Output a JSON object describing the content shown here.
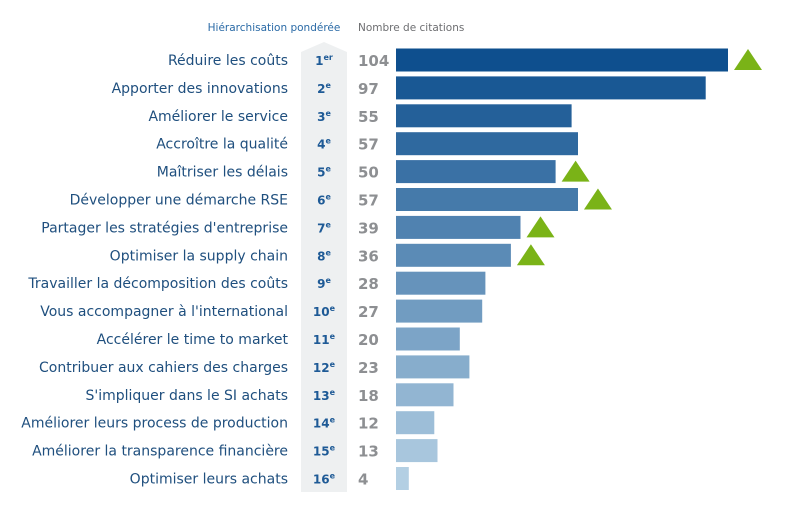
{
  "header": {
    "rank_title": "Hiérarchisation pondérée",
    "value_title": "Nombre de citations"
  },
  "colors": {
    "rank_column_fill": "#eef0f1",
    "header_rank": "#2a6aa6",
    "header_value": "#6d6e71",
    "triangle": "#7ab317",
    "bar_dark": "#0e4f8e",
    "bar_light": "#b3cfe3"
  },
  "chart_data": {
    "type": "bar",
    "orientation": "horizontal",
    "categories": [
      "Réduire les coûts",
      "Apporter des innovations",
      "Améliorer le service",
      "Accroître la qualité",
      "Maîtriser les délais",
      "Développer une démarche RSE",
      "Partager les stratégies d'entreprise",
      "Optimiser la supply chain",
      "Travailler la décomposition des coûts",
      "Vous accompagner à l'international",
      "Accélérer le time to market",
      "Contribuer aux cahiers des charges",
      "S'impliquer dans le SI achats",
      "Améliorer leurs process de production",
      "Améliorer la transparence financière",
      "Optimiser leurs achats"
    ],
    "ranks": [
      {
        "num": "1",
        "suffix": "er"
      },
      {
        "num": "2",
        "suffix": "e"
      },
      {
        "num": "3",
        "suffix": "e"
      },
      {
        "num": "4",
        "suffix": "e"
      },
      {
        "num": "5",
        "suffix": "e"
      },
      {
        "num": "6",
        "suffix": "e"
      },
      {
        "num": "7",
        "suffix": "e"
      },
      {
        "num": "8",
        "suffix": "e"
      },
      {
        "num": "9",
        "suffix": "e"
      },
      {
        "num": "10",
        "suffix": "e"
      },
      {
        "num": "11",
        "suffix": "e"
      },
      {
        "num": "12",
        "suffix": "e"
      },
      {
        "num": "13",
        "suffix": "e"
      },
      {
        "num": "14",
        "suffix": "e"
      },
      {
        "num": "15",
        "suffix": "e"
      },
      {
        "num": "16",
        "suffix": "e"
      }
    ],
    "values": [
      104,
      97,
      55,
      57,
      50,
      57,
      39,
      36,
      28,
      27,
      20,
      23,
      18,
      12,
      13,
      4
    ],
    "trend_up": [
      true,
      false,
      false,
      false,
      true,
      true,
      true,
      true,
      false,
      false,
      false,
      false,
      false,
      false,
      false,
      false
    ],
    "xlim": [
      0,
      104
    ],
    "grid": false,
    "legend": "none"
  }
}
